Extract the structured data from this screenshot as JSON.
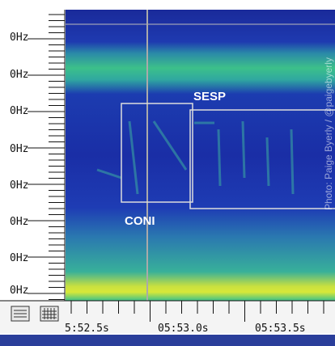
{
  "y_axis": {
    "labels": [
      "0Hz",
      "0Hz",
      "0Hz",
      "0Hz",
      "0Hz",
      "0Hz",
      "0Hz",
      "0Hz"
    ]
  },
  "time_axis": {
    "labels": [
      "5:52.5s",
      "05:53.0s",
      "05:53.5s"
    ]
  },
  "annotations": {
    "boxes": [
      {
        "label": "SESP"
      },
      {
        "label": "CONI"
      }
    ]
  },
  "credit": "Photo: Paige Byerly / @paigebyerly"
}
